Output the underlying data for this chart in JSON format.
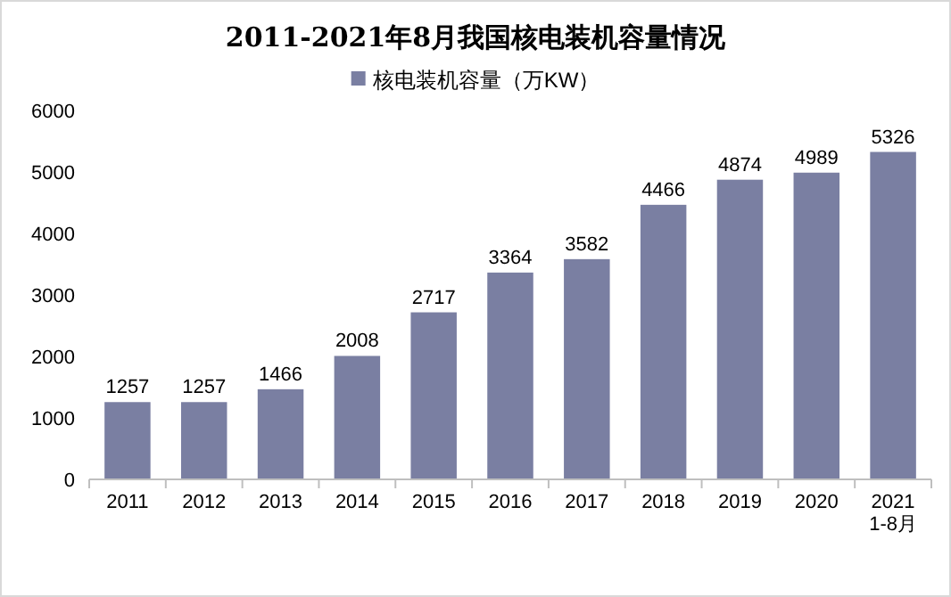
{
  "chart_data": {
    "type": "bar",
    "title": "2011-2021年8月我国核电装机容量情况",
    "categories": [
      "2011",
      "2012",
      "2013",
      "2014",
      "2015",
      "2016",
      "2017",
      "2018",
      "2019",
      "2020",
      "2021\n1-8月"
    ],
    "series": [
      {
        "name": "核电装机容量（万KW）",
        "color": "#7a7fa2",
        "values": [
          1257,
          1257,
          1466,
          2008,
          2717,
          3364,
          3582,
          4466,
          4874,
          4989,
          5326
        ]
      }
    ],
    "ylim": [
      0,
      6000
    ],
    "yticks": [
      0,
      1000,
      2000,
      3000,
      4000,
      5000,
      6000
    ],
    "data_labels": true,
    "legend": "top"
  }
}
